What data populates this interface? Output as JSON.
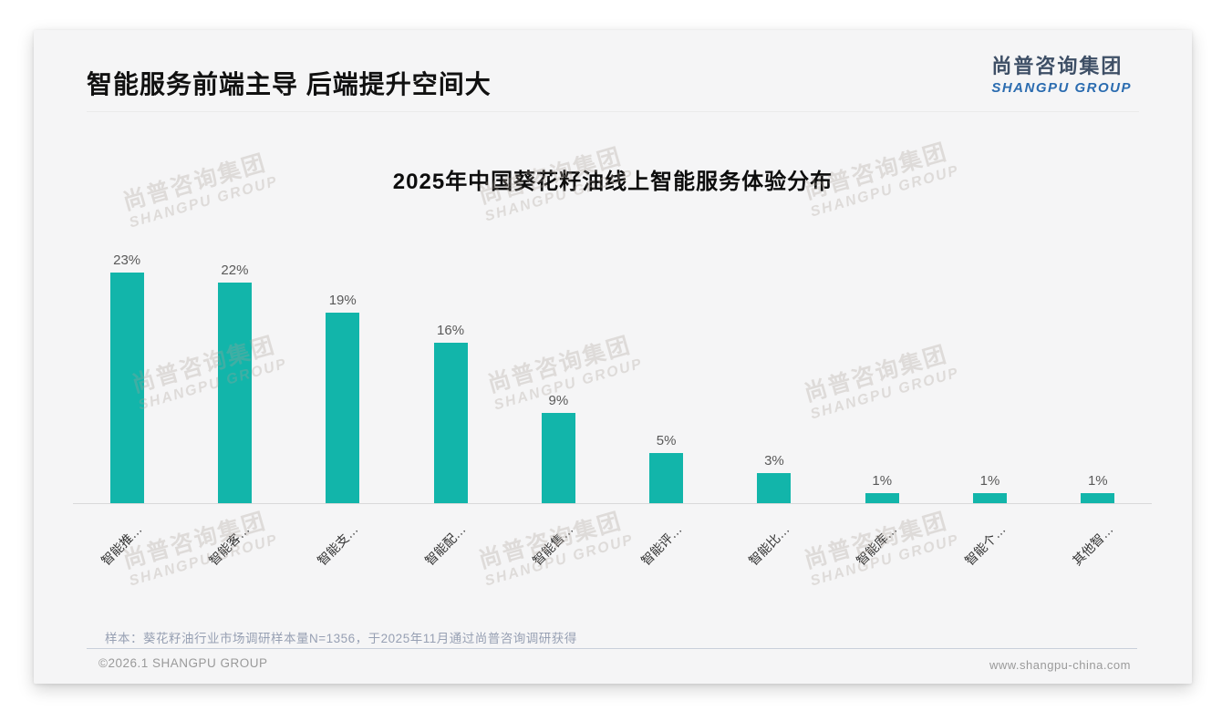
{
  "page": {
    "title": "智能服务前端主导 后端提升空间大",
    "logo": {
      "cn": "尚普咨询集团",
      "en": "SHANGPU GROUP"
    },
    "watermark": {
      "cn": "尚普咨询集团",
      "en": "SHANGPU GROUP"
    },
    "footnote": "样本：葵花籽油行业市场调研样本量N=1356，于2025年11月通过尚普咨询调研获得",
    "footer": {
      "copyright": "©2026.1 SHANGPU GROUP",
      "website": "www.shangpu-china.com"
    }
  },
  "chart_data": {
    "type": "bar",
    "title": "2025年中国葵花籽油线上智能服务体验分布",
    "categories": [
      "智能推…",
      "智能客…",
      "智能支…",
      "智能配…",
      "智能售…",
      "智能评…",
      "智能比…",
      "智能库…",
      "智能个…",
      "其他智…"
    ],
    "values": [
      23,
      22,
      19,
      16,
      9,
      5,
      3,
      1,
      1,
      1
    ],
    "value_labels": [
      "23%",
      "22%",
      "19%",
      "16%",
      "9%",
      "5%",
      "3%",
      "1%",
      "1%",
      "1%"
    ],
    "bar_color": "#12b5aa",
    "axis_color": "#d9d9d9",
    "ylim": [
      0,
      25
    ],
    "grid": false,
    "legend": false,
    "xlabel": "",
    "ylabel": ""
  }
}
